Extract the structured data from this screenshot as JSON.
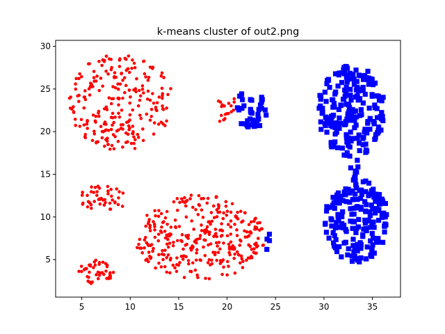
{
  "chart_data": {
    "type": "scatter",
    "title": "k-means cluster of out2.png",
    "xlabel": "",
    "ylabel": "",
    "xlim": [
      2.3,
      37.9
    ],
    "ylim": [
      0.6,
      30.7
    ],
    "x_ticks": [
      5,
      10,
      15,
      20,
      25,
      30,
      35
    ],
    "y_ticks": [
      5,
      10,
      15,
      20,
      25,
      30
    ],
    "grid": false,
    "legend": "none",
    "series": [
      {
        "marker": "circle",
        "color": "#ff0000",
        "groups": [
          {
            "cx": 9.0,
            "cy": 23.5,
            "rx": 5.4,
            "ry": 5.7,
            "n": 240,
            "xmax": 15.2
          },
          {
            "cx": 7.2,
            "cy": 12.2,
            "rx": 2.6,
            "ry": 1.5,
            "n": 45
          },
          {
            "cx": 6.5,
            "cy": 3.6,
            "rx": 1.8,
            "ry": 1.5,
            "n": 45
          },
          {
            "cx": 17.2,
            "cy": 7.6,
            "rx": 6.8,
            "ry": 5.0,
            "n": 330
          },
          {
            "cx": 20.0,
            "cy": 22.6,
            "rx": 1.1,
            "ry": 2.0,
            "n": 18
          }
        ]
      },
      {
        "marker": "square",
        "color": "#0000ff",
        "groups": [
          {
            "cx": 22.5,
            "cy": 22.6,
            "rx": 1.9,
            "ry": 2.3,
            "n": 40
          },
          {
            "cx": 24.2,
            "cy": 7.3,
            "rx": 0.3,
            "ry": 1.5,
            "n": 4
          },
          {
            "cx": 32.8,
            "cy": 22.4,
            "rx": 3.5,
            "ry": 5.4,
            "n": 210
          },
          {
            "cx": 33.4,
            "cy": 9.6,
            "rx": 3.3,
            "ry": 4.9,
            "n": 190
          },
          {
            "cx": 33.2,
            "cy": 15.3,
            "rx": 0.5,
            "ry": 1.8,
            "n": 10
          }
        ]
      }
    ]
  }
}
